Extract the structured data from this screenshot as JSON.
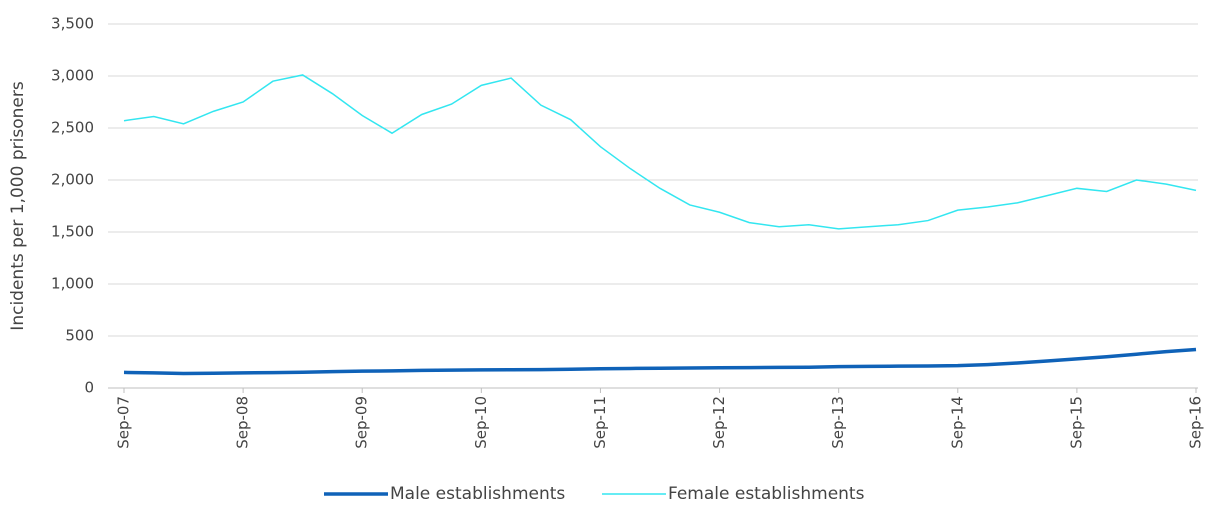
{
  "chart_data": {
    "type": "line",
    "y_label": "Incidents per 1,000 prisoners",
    "categories": [
      "Sep-07",
      null,
      null,
      null,
      "Sep-08",
      null,
      null,
      null,
      "Sep-09",
      null,
      null,
      null,
      "Sep-10",
      null,
      null,
      null,
      "Sep-11",
      null,
      null,
      null,
      "Sep-12",
      null,
      null,
      null,
      "Sep-13",
      null,
      null,
      null,
      "Sep-14",
      null,
      null,
      null,
      "Sep-15",
      null,
      null,
      null,
      "Sep-16"
    ],
    "series": [
      {
        "name": "Male establishments",
        "color": "#0f62b8",
        "width": 3.5,
        "values": [
          150,
          145,
          140,
          142,
          145,
          148,
          152,
          158,
          162,
          165,
          170,
          172,
          174,
          175,
          177,
          180,
          185,
          188,
          190,
          192,
          195,
          196,
          198,
          200,
          205,
          208,
          210,
          212,
          215,
          225,
          240,
          260,
          280,
          300,
          325,
          350,
          370
        ]
      },
      {
        "name": "Female establishments",
        "color": "#33e6f0",
        "width": 1.5,
        "values": [
          2570,
          2610,
          2540,
          2660,
          2750,
          2950,
          3010,
          2830,
          2620,
          2450,
          2630,
          2730,
          2910,
          2980,
          2720,
          2580,
          2320,
          2110,
          1920,
          1760,
          1690,
          1590,
          1550,
          1570,
          1530,
          1550,
          1570,
          1610,
          1710,
          1740,
          1780,
          1850,
          1920,
          1890,
          2000,
          1960,
          1900
        ]
      }
    ],
    "ylim": [
      0,
      3500
    ],
    "yticks": [
      0,
      500,
      {
        "value": 1000,
        "label": "1,000"
      },
      {
        "value": 1500,
        "label": "1,500"
      },
      {
        "value": 2000,
        "label": "2,000"
      },
      {
        "value": 2500,
        "label": "2,500"
      },
      {
        "value": 3000,
        "label": "3,000"
      },
      {
        "value": 3500,
        "label": "3,500"
      }
    ],
    "grid": true,
    "legend": "bottom"
  }
}
